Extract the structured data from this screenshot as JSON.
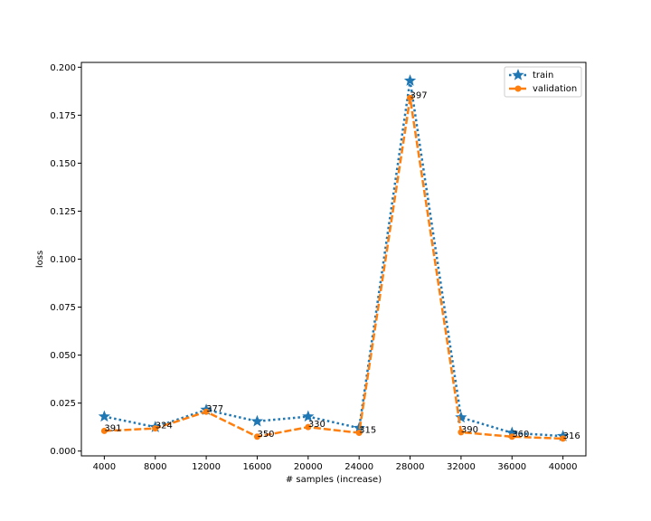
{
  "chart_data": {
    "type": "line",
    "title": "",
    "xlabel": "# samples (increase)",
    "ylabel": "loss",
    "x": [
      4000,
      8000,
      12000,
      16000,
      20000,
      24000,
      28000,
      32000,
      36000,
      40000
    ],
    "xticks": [
      "4000",
      "8000",
      "12000",
      "16000",
      "20000",
      "24000",
      "28000",
      "32000",
      "36000",
      "40000"
    ],
    "yticks": [
      "0.000",
      "0.025",
      "0.050",
      "0.075",
      "0.100",
      "0.125",
      "0.150",
      "0.175",
      "0.200"
    ],
    "xlim": [
      2200,
      41800
    ],
    "ylim": [
      -0.0025,
      0.2025
    ],
    "grid": false,
    "legend_position": "top-right",
    "series": [
      {
        "name": "train",
        "color": "#1f77b4",
        "line_style": "dotted",
        "marker": "star",
        "values": [
          0.018,
          0.0125,
          0.0215,
          0.0155,
          0.018,
          0.012,
          0.193,
          0.0175,
          0.0095,
          0.0078
        ]
      },
      {
        "name": "validation",
        "color": "#ff7f0e",
        "line_style": "dashed",
        "marker": "circle",
        "values": [
          0.0105,
          0.0118,
          0.0205,
          0.0075,
          0.0125,
          0.0095,
          0.184,
          0.0098,
          0.0075,
          0.0065
        ]
      }
    ],
    "annotations": [
      "391",
      "324",
      "377",
      "350",
      "330",
      "315",
      "397",
      "390",
      "360",
      "316"
    ]
  }
}
